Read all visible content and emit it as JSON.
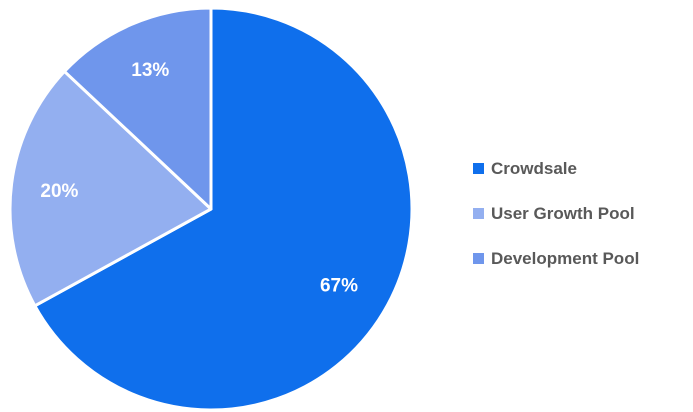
{
  "chart_data": {
    "type": "pie",
    "title": "",
    "start_angle": "12 o'clock",
    "direction": "clockwise",
    "legend_position": "right",
    "slices": [
      {
        "name": "Crowdsale",
        "value": 67,
        "label": "67%",
        "color": "#0f6fec"
      },
      {
        "name": "User Growth Pool",
        "value": 20,
        "label": "20%",
        "color": "#93aff0"
      },
      {
        "name": "Development Pool",
        "value": 13,
        "label": "13%",
        "color": "#6f96ec"
      }
    ],
    "slice_border_color": "#ffffff"
  }
}
